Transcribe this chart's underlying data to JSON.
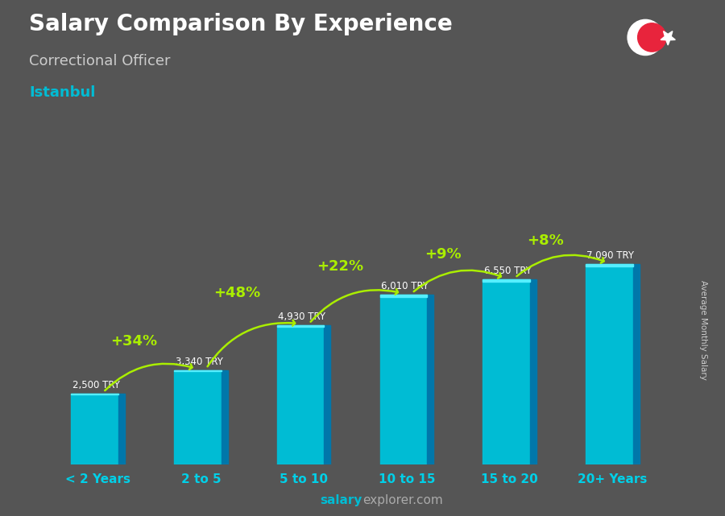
{
  "title": "Salary Comparison By Experience",
  "subtitle": "Correctional Officer",
  "city": "Istanbul",
  "ylabel": "Average Monthly Salary",
  "categories": [
    "< 2 Years",
    "2 to 5",
    "5 to 10",
    "10 to 15",
    "15 to 20",
    "20+ Years"
  ],
  "values": [
    2500,
    3340,
    4930,
    6010,
    6550,
    7090
  ],
  "bar_color": "#00bcd4",
  "bar_dark_color": "#0077aa",
  "bar_top_color": "#55eeff",
  "background_color": "#555555",
  "pct_changes": [
    "+34%",
    "+48%",
    "+22%",
    "+9%",
    "+8%"
  ],
  "salary_labels": [
    "2,500 TRY",
    "3,340 TRY",
    "4,930 TRY",
    "6,010 TRY",
    "6,550 TRY",
    "7,090 TRY"
  ],
  "arrow_color": "#aaee00",
  "pct_color": "#aaee00",
  "salary_label_color": "#ffffff",
  "title_color": "#ffffff",
  "subtitle_color": "#cccccc",
  "city_color": "#00bcd4",
  "tick_color": "#00d0e8",
  "watermark_salary": "salary",
  "watermark_rest": "explorer.com",
  "watermark_color1": "#00bcd4",
  "watermark_color2": "#aaaaaa",
  "flag_color": "#e8243c",
  "ylim": [
    0,
    9500
  ]
}
